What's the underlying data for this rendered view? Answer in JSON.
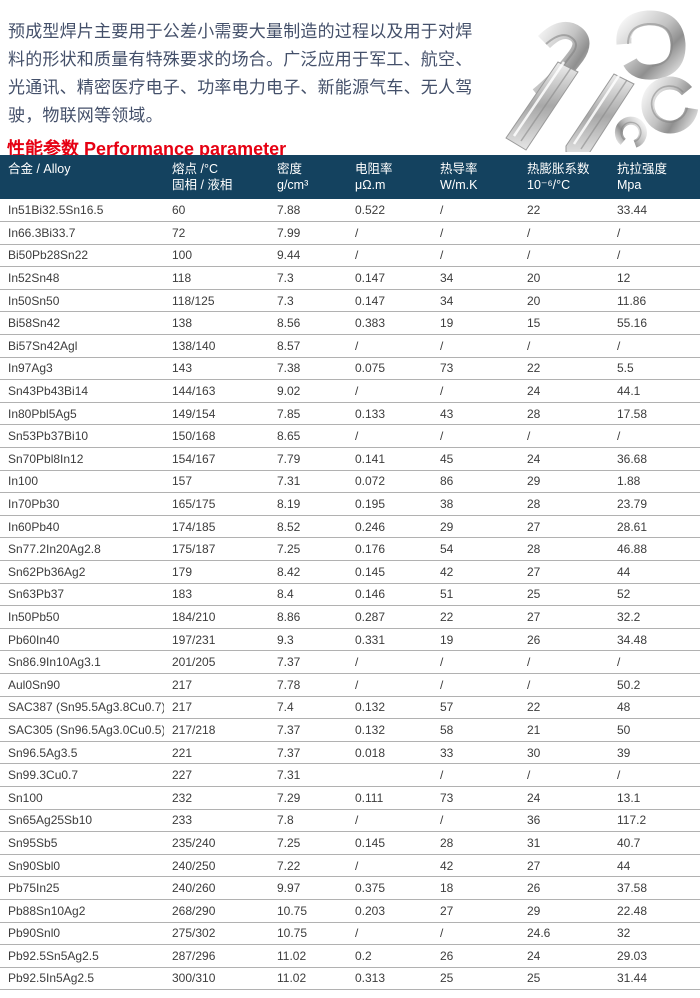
{
  "page": {
    "intro_text": "预成型焊片主要用于公差小需要大量制造的过程以及用于对焊料的形状和质量有特殊要求的场合。广泛应用于军工、航空、光通讯、精密医疗电子、功率电力电子、新能源气车、无人驾驶，物联网等领域。",
    "section_title": "性能参数 Performance parameter"
  },
  "colors": {
    "header_bg": "#14425f",
    "title_red": "#e60012",
    "intro_text": "#44506a",
    "body_text": "#3c3c3c",
    "row_border": "#b1b1b1"
  },
  "table": {
    "columns": [
      {
        "line1": "合金 / Alloy",
        "line2": ""
      },
      {
        "line1": "熔点 /°C",
        "line2": "固相 / 液相"
      },
      {
        "line1": "密度",
        "line2": "g/cm³"
      },
      {
        "line1": "电阻率",
        "line2": "μΩ.m"
      },
      {
        "line1": "热导率",
        "line2": "W/m.K"
      },
      {
        "line1": "热膨胀系数",
        "line2": "10⁻⁶/°C"
      },
      {
        "line1": "抗拉强度",
        "line2": "Mpa"
      }
    ],
    "rows": [
      [
        "In51Bi32.5Sn16.5",
        "60",
        "7.88",
        "0.522",
        "/",
        "22",
        "33.44"
      ],
      [
        "In66.3Bi33.7",
        "72",
        "7.99",
        "/",
        "/",
        "/",
        "/"
      ],
      [
        "Bi50Pb28Sn22",
        "100",
        "9.44",
        "/",
        "/",
        "/",
        "/"
      ],
      [
        "In52Sn48",
        "118",
        "7.3",
        "0.147",
        "34",
        "20",
        "12"
      ],
      [
        "In50Sn50",
        "118/125",
        "7.3",
        "0.147",
        "34",
        "20",
        "11.86"
      ],
      [
        "Bi58Sn42",
        "138",
        "8.56",
        "0.383",
        "19",
        "15",
        "55.16"
      ],
      [
        "Bi57Sn42Agl",
        "138/140",
        "8.57",
        "/",
        "/",
        "/",
        "/"
      ],
      [
        "In97Ag3",
        "143",
        "7.38",
        "0.075",
        "73",
        "22",
        "5.5"
      ],
      [
        "Sn43Pb43Bi14",
        "144/163",
        "9.02",
        "/",
        "/",
        "24",
        "44.1"
      ],
      [
        "In80Pbl5Ag5",
        "149/154",
        "7.85",
        "0.133",
        "43",
        "28",
        "17.58"
      ],
      [
        "Sn53Pb37Bi10",
        "150/168",
        "8.65",
        "/",
        "/",
        "/",
        "/"
      ],
      [
        "Sn70Pbl8In12",
        "154/167",
        "7.79",
        "0.141",
        "45",
        "24",
        "36.68"
      ],
      [
        "In100",
        "157",
        "7.31",
        "0.072",
        "86",
        "29",
        "1.88"
      ],
      [
        "In70Pb30",
        "165/175",
        "8.19",
        "0.195",
        "38",
        "28",
        "23.79"
      ],
      [
        "In60Pb40",
        "174/185",
        "8.52",
        "0.246",
        "29",
        "27",
        "28.61"
      ],
      [
        "Sn77.2In20Ag2.8",
        "175/187",
        "7.25",
        "0.176",
        "54",
        "28",
        "46.88"
      ],
      [
        "Sn62Pb36Ag2",
        "179",
        "8.42",
        "0.145",
        "42",
        "27",
        "44"
      ],
      [
        "Sn63Pb37",
        "183",
        "8.4",
        "0.146",
        "51",
        "25",
        "52"
      ],
      [
        "In50Pb50",
        "184/210",
        "8.86",
        "0.287",
        "22",
        "27",
        "32.2"
      ],
      [
        "Pb60In40",
        "197/231",
        "9.3",
        "0.331",
        "19",
        "26",
        "34.48"
      ],
      [
        "Sn86.9In10Ag3.1",
        "201/205",
        "7.37",
        "/",
        "/",
        "/",
        "/"
      ],
      [
        "Aul0Sn90",
        "217",
        "7.78",
        "/",
        "/",
        "/",
        "50.2"
      ],
      [
        "SAC387 (Sn95.5Ag3.8Cu0.7)",
        "217",
        "7.4",
        "0.132",
        "57",
        "22",
        "48"
      ],
      [
        "SAC305 (Sn96.5Ag3.0Cu0.5)",
        "217/218",
        "7.37",
        "0.132",
        "58",
        "21",
        "50"
      ],
      [
        "Sn96.5Ag3.5",
        "221",
        "7.37",
        "0.018",
        "33",
        "30",
        "39"
      ],
      [
        "Sn99.3Cu0.7",
        "227",
        "7.31",
        "",
        "/",
        "/",
        "/"
      ],
      [
        "Sn100",
        "232",
        "7.29",
        "0.111",
        "73",
        "24",
        "13.1"
      ],
      [
        "Sn65Ag25Sb10",
        "233",
        "7.8",
        "/",
        "/",
        "36",
        "117.2"
      ],
      [
        "Sn95Sb5",
        "235/240",
        "7.25",
        "0.145",
        "28",
        "31",
        "40.7"
      ],
      [
        "Sn90Sbl0",
        "240/250",
        "7.22",
        "/",
        "42",
        "27",
        "44"
      ],
      [
        "Pb75In25",
        "240/260",
        "9.97",
        "0.375",
        "18",
        "26",
        "37.58"
      ],
      [
        "Pb88Sn10Ag2",
        "268/290",
        "10.75",
        "0.203",
        "27",
        "29",
        "22.48"
      ],
      [
        "Pb90Snl0",
        "275/302",
        "10.75",
        "/",
        "/",
        "24.6",
        "32"
      ],
      [
        "Pb92.5Sn5Ag2.5",
        "287/296",
        "11.02",
        "0.2",
        "26",
        "24",
        "29.03"
      ],
      [
        "Pb92.5In5Ag2.5",
        "300/310",
        "11.02",
        "0.313",
        "25",
        "25",
        "31.44"
      ]
    ]
  }
}
